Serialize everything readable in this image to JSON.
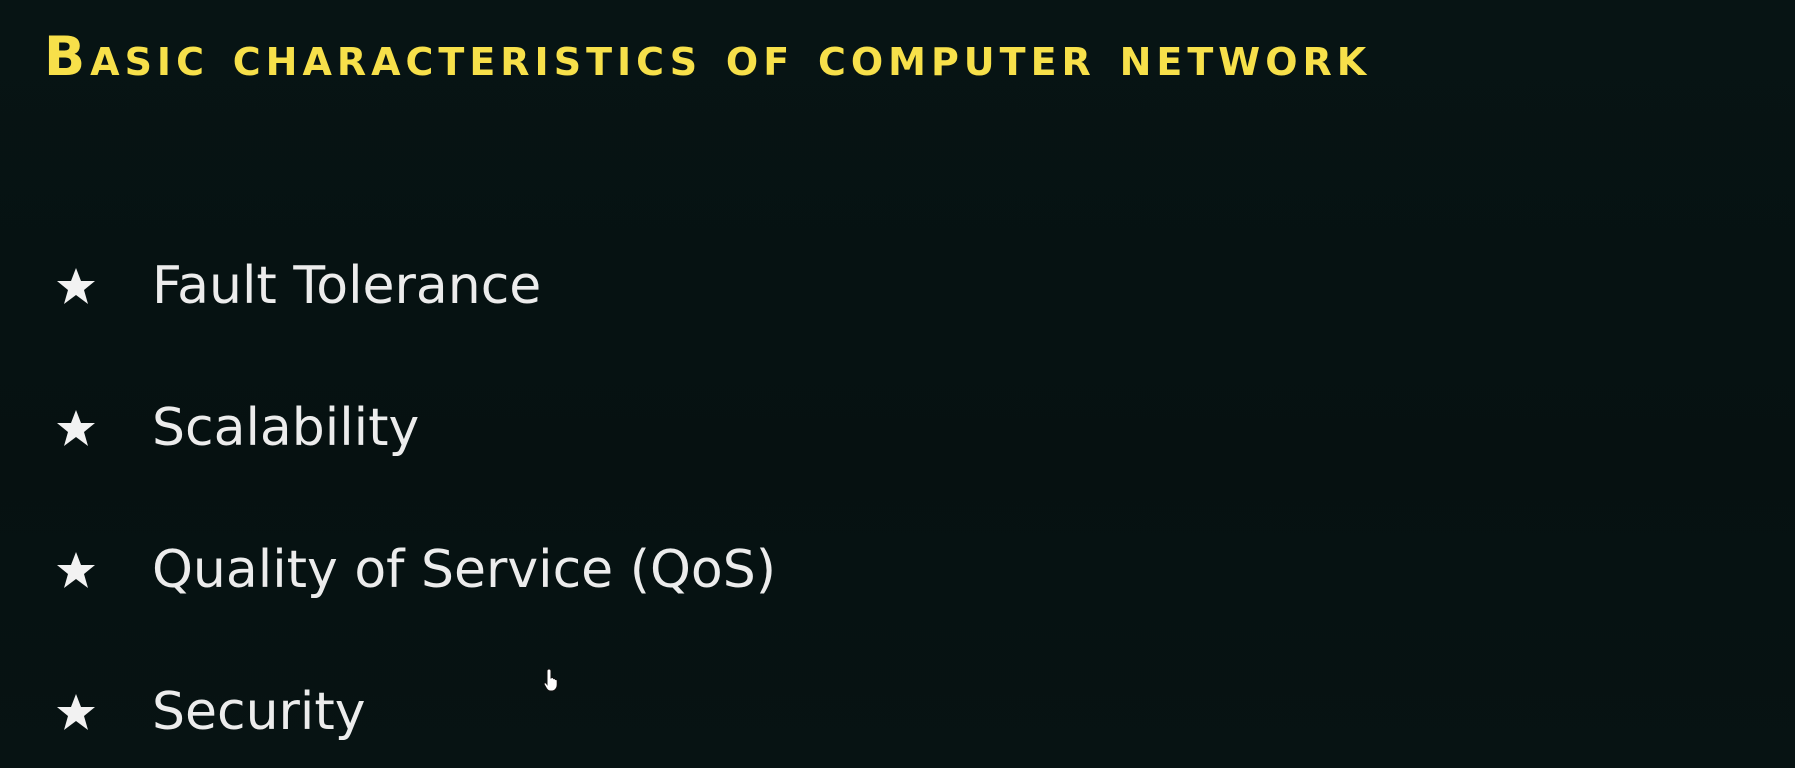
{
  "slide": {
    "title": "Basic characteristics of computer network",
    "bullet_icon": "star-icon",
    "items": [
      {
        "label": "Fault Tolerance"
      },
      {
        "label": "Scalability"
      },
      {
        "label": "Quality of Service (QoS)"
      },
      {
        "label": "Security"
      }
    ]
  },
  "colors": {
    "background": "#061212",
    "title": "#f7e04a",
    "text": "#ececec",
    "bullet": "#f2f2f2"
  },
  "cursor_icon": "hand-pointer-icon"
}
